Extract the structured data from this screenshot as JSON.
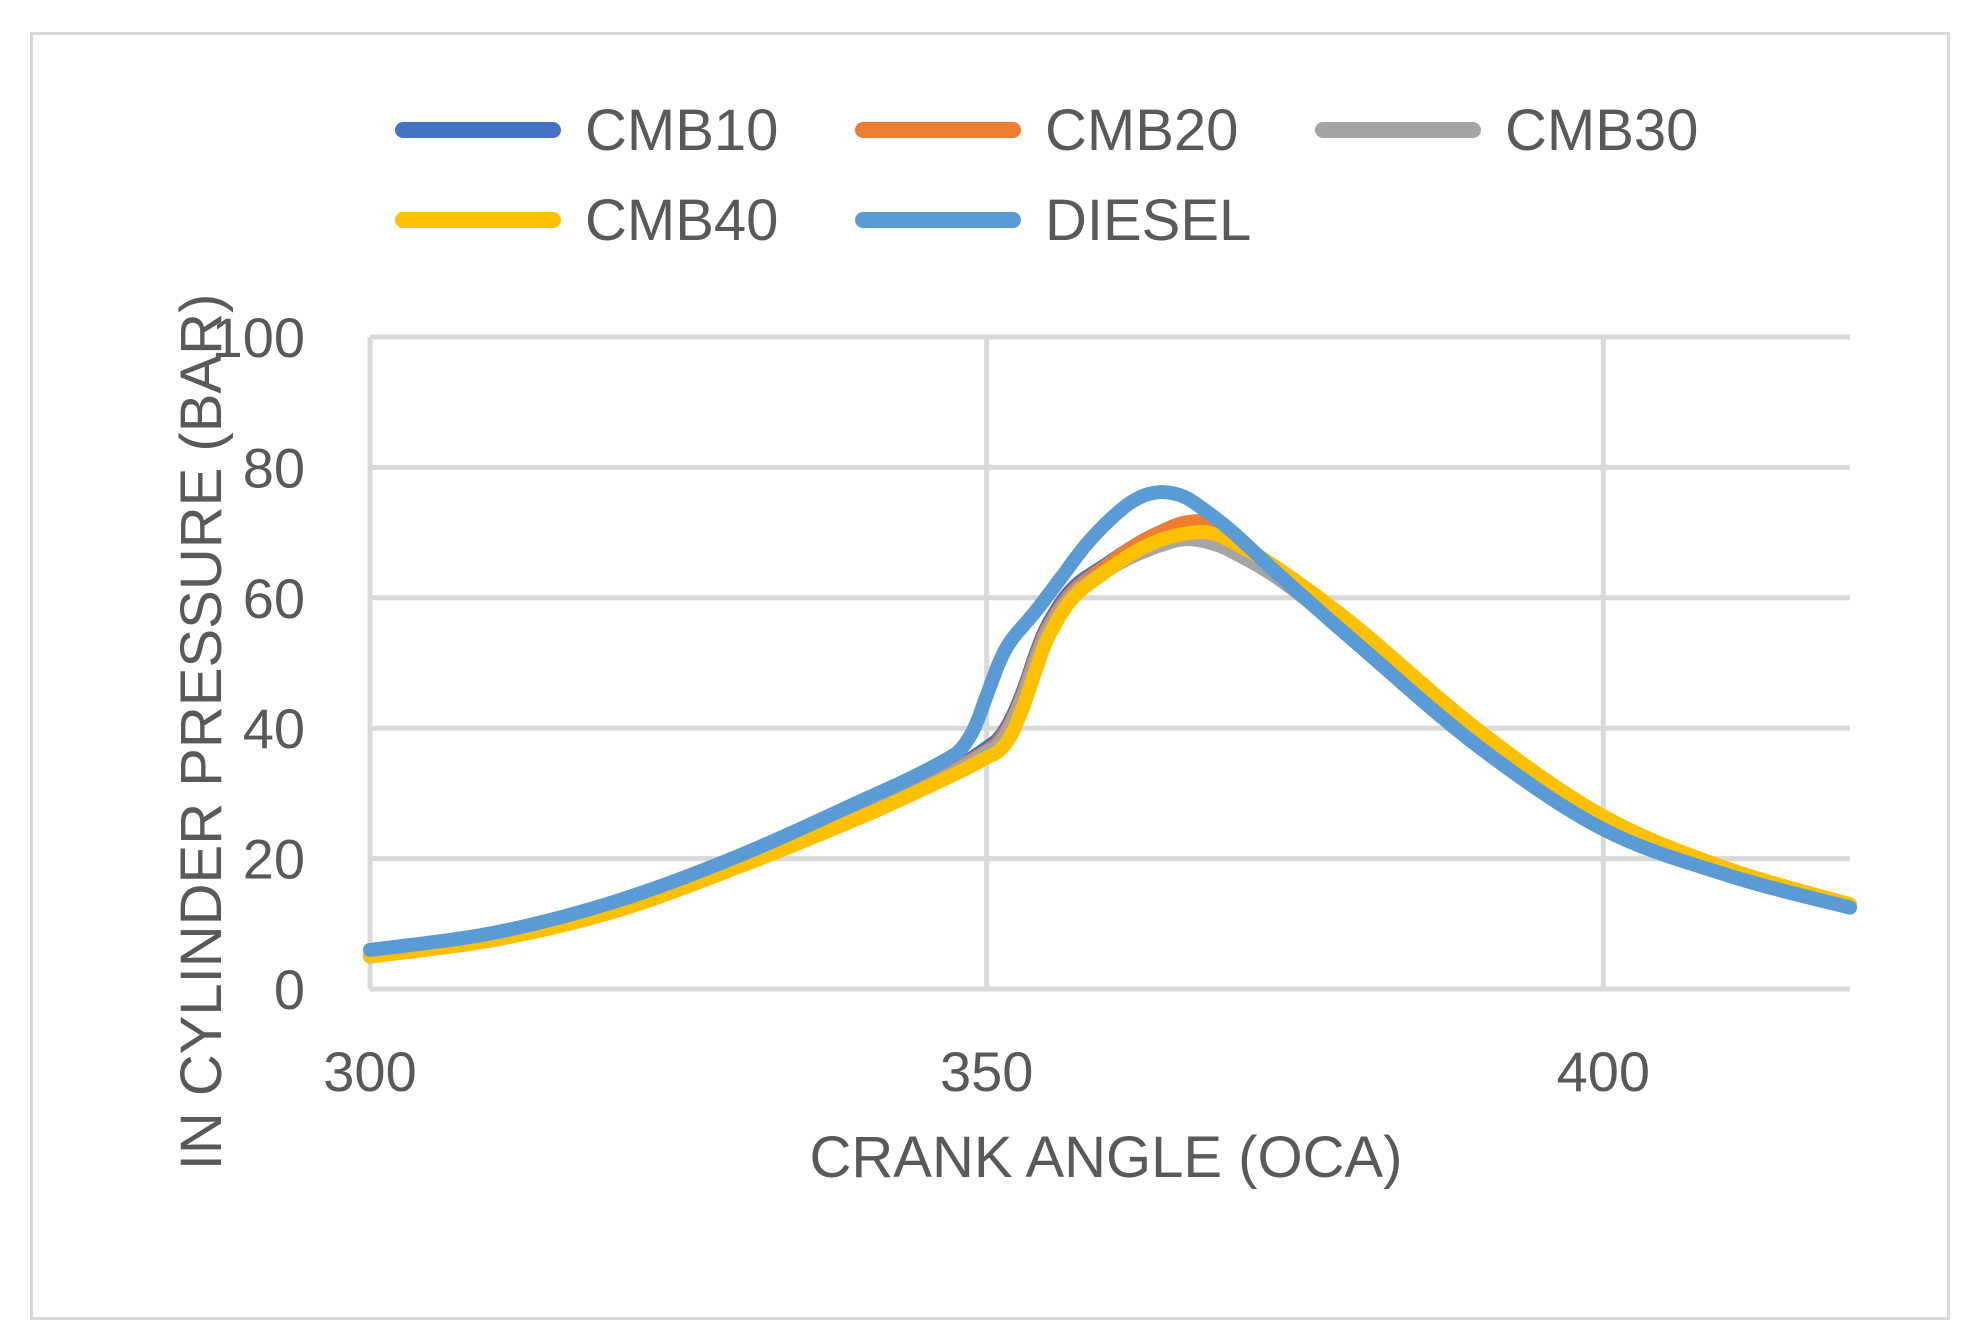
{
  "chart_data": {
    "type": "line",
    "title": "",
    "xlabel": "CRANK ANGLE (OCA)",
    "ylabel": "IN CYLINDER PRESSURE (BAR)",
    "xlim": [
      300,
      420
    ],
    "ylim": [
      0,
      100
    ],
    "x_ticks": [
      300,
      350,
      400
    ],
    "y_ticks": [
      0,
      20,
      40,
      60,
      80,
      100
    ],
    "grid": true,
    "legend_position": "top",
    "series": [
      {
        "name": "CMB10",
        "color": "#4472c4",
        "points": [
          [
            300,
            5
          ],
          [
            310,
            7.8
          ],
          [
            320,
            12.5
          ],
          [
            330,
            19.5
          ],
          [
            340,
            27.5
          ],
          [
            345,
            31.5
          ],
          [
            348,
            34.5
          ],
          [
            350,
            37
          ],
          [
            351,
            38.5
          ],
          [
            352,
            41.5
          ],
          [
            353,
            46
          ],
          [
            354,
            51.5
          ],
          [
            355,
            56
          ],
          [
            357,
            61.5
          ],
          [
            360,
            65.5
          ],
          [
            362,
            68
          ],
          [
            364,
            70
          ],
          [
            366,
            71
          ],
          [
            368,
            71
          ],
          [
            370,
            68.5
          ],
          [
            374,
            63.5
          ],
          [
            380,
            54
          ],
          [
            390,
            38
          ],
          [
            400,
            25
          ],
          [
            410,
            17.5
          ],
          [
            420,
            12.5
          ]
        ]
      },
      {
        "name": "CMB20",
        "color": "#ed7d31",
        "points": [
          [
            300,
            5
          ],
          [
            310,
            7.7
          ],
          [
            320,
            12.3
          ],
          [
            330,
            19.2
          ],
          [
            340,
            27.2
          ],
          [
            345,
            31.2
          ],
          [
            348,
            34.3
          ],
          [
            350,
            36.5
          ],
          [
            351,
            38
          ],
          [
            352,
            41
          ],
          [
            353,
            45.5
          ],
          [
            354,
            51
          ],
          [
            355,
            55.5
          ],
          [
            357,
            61
          ],
          [
            360,
            65.3
          ],
          [
            362,
            68
          ],
          [
            364,
            70
          ],
          [
            366,
            71.5
          ],
          [
            368,
            71.5
          ],
          [
            370,
            69
          ],
          [
            374,
            63.8
          ],
          [
            380,
            54.5
          ],
          [
            390,
            38.5
          ],
          [
            400,
            25.5
          ],
          [
            410,
            18
          ],
          [
            420,
            12.8
          ]
        ]
      },
      {
        "name": "CMB30",
        "color": "#a5a5a5",
        "points": [
          [
            300,
            5
          ],
          [
            310,
            7.6
          ],
          [
            320,
            12.2
          ],
          [
            330,
            19
          ],
          [
            340,
            27
          ],
          [
            345,
            31
          ],
          [
            348,
            34
          ],
          [
            350,
            36.3
          ],
          [
            351,
            37.5
          ],
          [
            352,
            40.5
          ],
          [
            353,
            45
          ],
          [
            354,
            50.5
          ],
          [
            355,
            55
          ],
          [
            357,
            60.5
          ],
          [
            360,
            64.5
          ],
          [
            362,
            66.5
          ],
          [
            364,
            68
          ],
          [
            366,
            69
          ],
          [
            368,
            68.5
          ],
          [
            370,
            67
          ],
          [
            374,
            62.5
          ],
          [
            380,
            53.5
          ],
          [
            390,
            38
          ],
          [
            400,
            25.5
          ],
          [
            410,
            18
          ],
          [
            420,
            12.8
          ]
        ]
      },
      {
        "name": "CMB40",
        "color": "#ffc000",
        "points": [
          [
            300,
            5
          ],
          [
            310,
            7.5
          ],
          [
            320,
            12
          ],
          [
            330,
            18.8
          ],
          [
            340,
            26.5
          ],
          [
            345,
            30.8
          ],
          [
            348,
            33.5
          ],
          [
            350,
            35.5
          ],
          [
            351,
            36.5
          ],
          [
            352,
            39
          ],
          [
            353,
            43.5
          ],
          [
            354,
            49
          ],
          [
            355,
            54
          ],
          [
            357,
            60
          ],
          [
            360,
            64.5
          ],
          [
            362,
            67
          ],
          [
            364,
            68.8
          ],
          [
            366,
            69.8
          ],
          [
            368,
            70
          ],
          [
            370,
            68.5
          ],
          [
            374,
            64
          ],
          [
            380,
            55.5
          ],
          [
            390,
            39.5
          ],
          [
            400,
            26.5
          ],
          [
            410,
            18.5
          ],
          [
            420,
            13
          ]
        ]
      },
      {
        "name": "DIESEL",
        "color": "#5b9bd5",
        "points": [
          [
            300,
            6
          ],
          [
            310,
            8.6
          ],
          [
            320,
            13.5
          ],
          [
            330,
            20.5
          ],
          [
            340,
            29
          ],
          [
            344,
            32.5
          ],
          [
            347,
            35.5
          ],
          [
            348,
            37
          ],
          [
            349,
            40
          ],
          [
            350,
            45
          ],
          [
            351,
            50
          ],
          [
            352,
            53.5
          ],
          [
            354,
            58
          ],
          [
            356,
            63
          ],
          [
            358,
            68
          ],
          [
            360,
            72
          ],
          [
            362,
            75
          ],
          [
            364,
            76.2
          ],
          [
            366,
            75.5
          ],
          [
            368,
            73
          ],
          [
            370,
            70
          ],
          [
            374,
            63
          ],
          [
            380,
            53
          ],
          [
            390,
            37
          ],
          [
            400,
            24.5
          ],
          [
            410,
            17.5
          ],
          [
            420,
            12.5
          ]
        ]
      }
    ]
  }
}
